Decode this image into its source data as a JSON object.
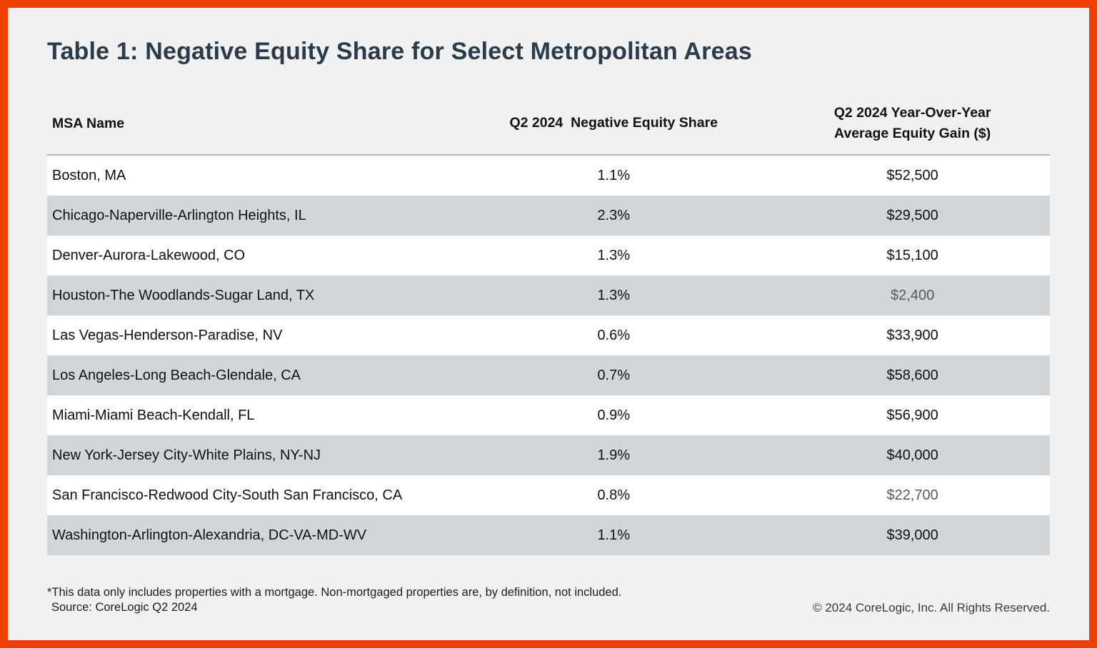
{
  "header": {
    "title": "Table 1: Negative Equity Share for Select Metropolitan Areas"
  },
  "table": {
    "headers": {
      "msa": "MSA Name",
      "share": "Q2 2024  Negative Equity Share",
      "gain": "Q2 2024 Year-Over-Year\nAverage Equity Gain ($)"
    },
    "rows": [
      {
        "msa": "Boston, MA",
        "share": "1.1%",
        "gain": "$52,500",
        "gain_muted": false
      },
      {
        "msa": "Chicago-Naperville-Arlington Heights, IL",
        "share": "2.3%",
        "gain": "$29,500",
        "gain_muted": false
      },
      {
        "msa": "Denver-Aurora-Lakewood, CO",
        "share": "1.3%",
        "gain": "$15,100",
        "gain_muted": false
      },
      {
        "msa": "Houston-The Woodlands-Sugar Land, TX",
        "share": "1.3%",
        "gain": "$2,400",
        "gain_muted": true
      },
      {
        "msa": "Las Vegas-Henderson-Paradise, NV",
        "share": "0.6%",
        "gain": "$33,900",
        "gain_muted": false
      },
      {
        "msa": "Los Angeles-Long Beach-Glendale, CA",
        "share": "0.7%",
        "gain": "$58,600",
        "gain_muted": false
      },
      {
        "msa": "Miami-Miami Beach-Kendall, FL",
        "share": "0.9%",
        "gain": "$56,900",
        "gain_muted": false
      },
      {
        "msa": "New York-Jersey City-White Plains, NY-NJ",
        "share": "1.9%",
        "gain": "$40,000",
        "gain_muted": false
      },
      {
        "msa": "San Francisco-Redwood City-South San Francisco, CA",
        "share": "0.8%",
        "gain": "$22,700",
        "gain_muted": true
      },
      {
        "msa": "Washington-Arlington-Alexandria, DC-VA-MD-WV",
        "share": "1.1%",
        "gain": "$39,000",
        "gain_muted": false
      }
    ]
  },
  "footer": {
    "footnote": "*This data only includes properties with a mortgage. Non-mortgaged properties are, by definition, not included.",
    "source": "Source: CoreLogic Q2 2024",
    "copyright": "© 2024 CoreLogic, Inc. All Rights Reserved."
  },
  "colors": {
    "frame_border": "#EE4000",
    "background": "#F0F1F3",
    "row_stripe": "#D2D6D9",
    "row_plain": "#FFFFFF",
    "title_text": "#2C3B48",
    "body_text": "#111111",
    "muted_value_text": "#55595E",
    "header_divider": "#B2B8BC"
  },
  "chart_data": {
    "type": "table",
    "title": "Table 1: Negative Equity Share for Select Metropolitan Areas",
    "columns": [
      "MSA Name",
      "Q2 2024 Negative Equity Share",
      "Q2 2024 Year-Over-Year Average Equity Gain ($)"
    ],
    "rows": [
      [
        "Boston, MA",
        "1.1%",
        "$52,500"
      ],
      [
        "Chicago-Naperville-Arlington Heights, IL",
        "2.3%",
        "$29,500"
      ],
      [
        "Denver-Aurora-Lakewood, CO",
        "1.3%",
        "$15,100"
      ],
      [
        "Houston-The Woodlands-Sugar Land, TX",
        "1.3%",
        "$2,400"
      ],
      [
        "Las Vegas-Henderson-Paradise, NV",
        "0.6%",
        "$33,900"
      ],
      [
        "Los Angeles-Long Beach-Glendale, CA",
        "0.7%",
        "$58,600"
      ],
      [
        "Miami-Miami Beach-Kendall, FL",
        "0.9%",
        "$56,900"
      ],
      [
        "New York-Jersey City-White Plains, NY-NJ",
        "1.9%",
        "$40,000"
      ],
      [
        "San Francisco-Redwood City-South San Francisco, CA",
        "0.8%",
        "$22,700"
      ],
      [
        "Washington-Arlington-Alexandria, DC-VA-MD-WV",
        "1.1%",
        "$39,000"
      ]
    ],
    "negative_equity_share_pct": [
      1.1,
      2.3,
      1.3,
      1.3,
      0.6,
      0.7,
      0.9,
      1.9,
      0.8,
      1.1
    ],
    "avg_equity_gain_usd": [
      52500,
      29500,
      15100,
      2400,
      33900,
      58600,
      56900,
      40000,
      22700,
      39000
    ]
  }
}
